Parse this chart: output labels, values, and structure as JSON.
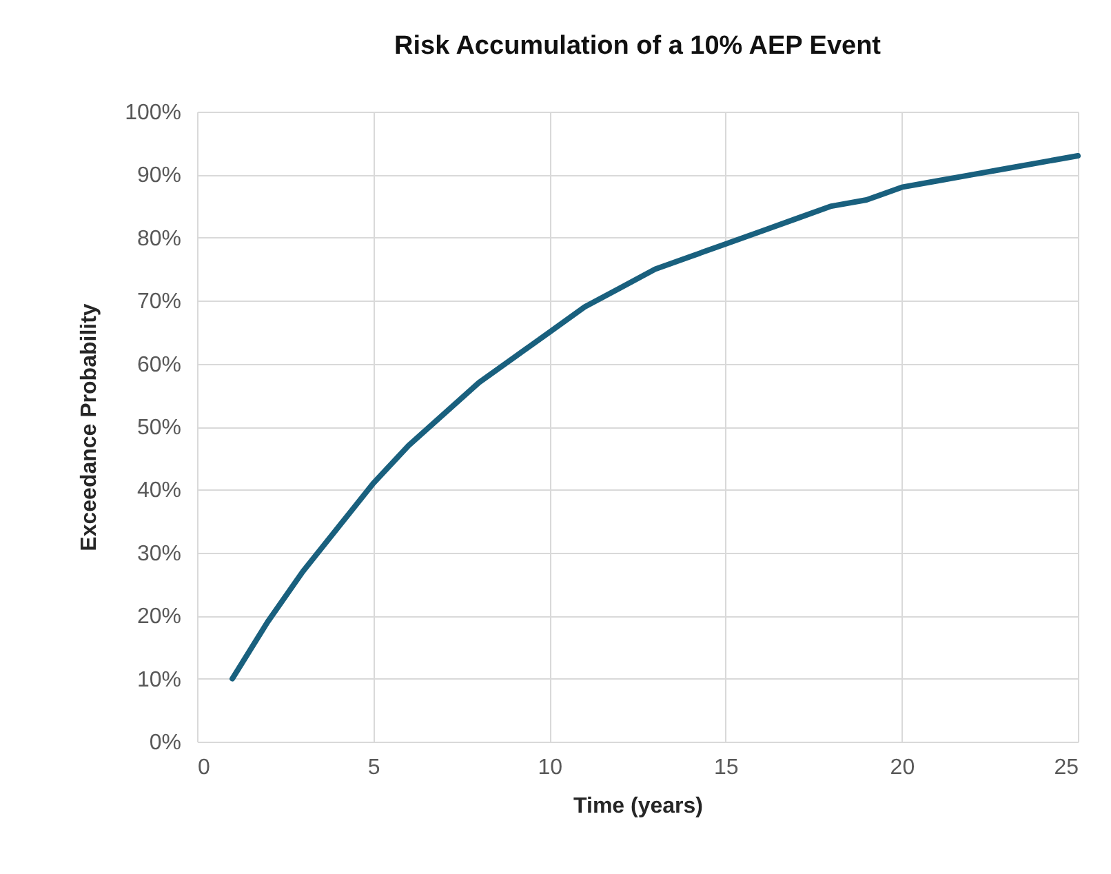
{
  "chart_data": {
    "type": "line",
    "title": "Risk Accumulation of a 10% AEP Event",
    "xlabel": "Time (years)",
    "ylabel": "Exceedance Probability",
    "x": [
      1,
      2,
      3,
      4,
      5,
      6,
      7,
      8,
      9,
      10,
      11,
      12,
      13,
      14,
      15,
      16,
      17,
      18,
      19,
      20,
      21,
      22,
      23,
      24,
      25
    ],
    "series": [
      {
        "color": "#19607e",
        "values": [
          10,
          19,
          27,
          34,
          41,
          47,
          52,
          57,
          61,
          65,
          69,
          72,
          75,
          77,
          79,
          81,
          83,
          85,
          86,
          88,
          89,
          90,
          91,
          92,
          93
        ]
      }
    ],
    "xlim": [
      0,
      25
    ],
    "xticks": [
      0,
      5,
      10,
      15,
      20,
      25
    ],
    "ylim": [
      0,
      100
    ],
    "yticks": [
      {
        "value": 0,
        "label": "0%"
      },
      {
        "value": 10,
        "label": "10%"
      },
      {
        "value": 20,
        "label": "20%"
      },
      {
        "value": 30,
        "label": "30%"
      },
      {
        "value": 40,
        "label": "40%"
      },
      {
        "value": 50,
        "label": "50%"
      },
      {
        "value": 60,
        "label": "60%"
      },
      {
        "value": 70,
        "label": "70%"
      },
      {
        "value": 80,
        "label": "80%"
      },
      {
        "value": 90,
        "label": "90%"
      },
      {
        "value": 100,
        "label": "100%"
      }
    ],
    "grid": true,
    "marker": "none",
    "line_style": "solid"
  }
}
